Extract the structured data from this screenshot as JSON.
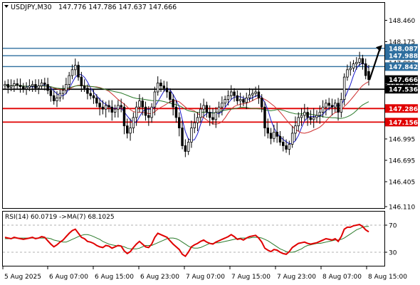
{
  "header": {
    "symbol": "USDJPY,M30",
    "ohlc": "147.776 147.786 147.637 147.666"
  },
  "rsi_header": "RSI(14) 60.0719 ->MA(7) 68.1025",
  "colors": {
    "bull": "#ffffff",
    "bear": "#000000",
    "candle_outline": "#000000",
    "ma_fast": "#1a1acc",
    "ma_mid": "#d03030",
    "ma_slow": "#2a7a2a",
    "resistance_line": "#2f6f9f",
    "pivot_line": "#000000",
    "support_line": "#e00000",
    "price_tag_blue": "#2f6f9f",
    "price_tag_black": "#000000",
    "price_tag_red": "#e00000",
    "rsi_line": "#e00000",
    "rsi_ma": "#2a7a2a",
    "grid": "#999999"
  },
  "chart_data": [
    {
      "type": "candlestick",
      "title": "USDJPY,M30",
      "y_ticks": [
        148.46,
        148.175,
        147.89,
        147.6,
        147.305,
        146.995,
        146.695,
        146.405,
        146.11
      ],
      "ylim": [
        146.11,
        148.6
      ],
      "x_ticks": [
        "5 Aug 2025",
        "6 Aug 07:00",
        "6 Aug 15:00",
        "6 Aug 23:00",
        "7 Aug 07:00",
        "7 Aug 15:00",
        "7 Aug 23:00",
        "8 Aug 07:00",
        "8 Aug 15:00"
      ],
      "levels": [
        {
          "value": 148.087,
          "label": "148.087",
          "kind": "resistance"
        },
        {
          "value": 147.988,
          "label": "147.988",
          "kind": "resistance"
        },
        {
          "value": 147.842,
          "label": "147.842",
          "kind": "resistance"
        },
        {
          "value": 147.666,
          "label": "147.666",
          "kind": "current"
        },
        {
          "value": 147.536,
          "label": "147.536",
          "kind": "pivot"
        },
        {
          "value": 147.286,
          "label": "147.286",
          "kind": "support"
        },
        {
          "value": 147.156,
          "label": "147.156",
          "kind": "support"
        }
      ],
      "forecast_arrow": {
        "from": 147.66,
        "to": 148.13
      },
      "close": [
        147.6,
        147.56,
        147.58,
        147.61,
        147.59,
        147.57,
        147.54,
        147.56,
        147.58,
        147.6,
        147.55,
        147.58,
        147.62,
        147.6,
        147.52,
        147.45,
        147.38,
        147.42,
        147.48,
        147.52,
        147.6,
        147.72,
        147.8,
        147.86,
        147.7,
        147.58,
        147.55,
        147.48,
        147.45,
        147.42,
        147.35,
        147.3,
        147.28,
        147.32,
        147.3,
        147.25,
        147.28,
        147.32,
        147.3,
        147.12,
        147.05,
        147.1,
        147.2,
        147.3,
        147.38,
        147.3,
        147.22,
        147.2,
        147.3,
        147.5,
        147.62,
        147.58,
        147.55,
        147.5,
        147.4,
        147.3,
        147.2,
        147.1,
        146.9,
        146.82,
        146.95,
        147.1,
        147.15,
        147.2,
        147.28,
        147.32,
        147.25,
        147.2,
        147.18,
        147.25,
        147.3,
        147.35,
        147.4,
        147.45,
        147.5,
        147.45,
        147.38,
        147.4,
        147.36,
        147.42,
        147.46,
        147.48,
        147.5,
        147.42,
        147.3,
        147.1,
        147.05,
        147.0,
        147.06,
        147.02,
        146.95,
        146.9,
        146.85,
        146.92,
        147.05,
        147.12,
        147.2,
        147.22,
        147.25,
        147.2,
        147.18,
        147.2,
        147.22,
        147.25,
        147.3,
        147.35,
        147.32,
        147.3,
        147.35,
        147.25,
        147.4,
        147.7,
        147.8,
        147.82,
        147.88,
        147.9,
        147.95,
        147.88,
        147.72,
        147.666
      ],
      "open": [
        147.58,
        147.6,
        147.56,
        147.58,
        147.61,
        147.59,
        147.57,
        147.54,
        147.56,
        147.58,
        147.6,
        147.55,
        147.58,
        147.62,
        147.6,
        147.52,
        147.45,
        147.38,
        147.42,
        147.48,
        147.52,
        147.6,
        147.72,
        147.8,
        147.86,
        147.7,
        147.58,
        147.55,
        147.48,
        147.45,
        147.42,
        147.35,
        147.3,
        147.28,
        147.32,
        147.3,
        147.25,
        147.28,
        147.32,
        147.3,
        147.12,
        147.05,
        147.1,
        147.2,
        147.3,
        147.38,
        147.3,
        147.22,
        147.2,
        147.3,
        147.5,
        147.62,
        147.58,
        147.55,
        147.5,
        147.4,
        147.3,
        147.2,
        147.1,
        146.9,
        146.82,
        146.95,
        147.1,
        147.15,
        147.2,
        147.28,
        147.32,
        147.25,
        147.2,
        147.18,
        147.25,
        147.3,
        147.35,
        147.4,
        147.45,
        147.5,
        147.45,
        147.38,
        147.4,
        147.36,
        147.42,
        147.46,
        147.48,
        147.5,
        147.42,
        147.3,
        147.1,
        147.05,
        147.0,
        147.06,
        147.02,
        146.95,
        146.9,
        146.85,
        146.92,
        147.05,
        147.12,
        147.2,
        147.22,
        147.25,
        147.2,
        147.18,
        147.2,
        147.22,
        147.25,
        147.3,
        147.35,
        147.32,
        147.3,
        147.35,
        147.25,
        147.4,
        147.7,
        147.8,
        147.82,
        147.88,
        147.9,
        147.95,
        147.88,
        147.776
      ]
    },
    {
      "type": "line",
      "title": "RSI(14) 60.0719 ->MA(7) 68.1025",
      "y_ticks": [
        70,
        30
      ],
      "ylim": [
        10,
        90
      ],
      "series": [
        {
          "name": "RSI(14)",
          "values": [
            52,
            51,
            50,
            52,
            51,
            50,
            49,
            50,
            51,
            52,
            50,
            51,
            53,
            52,
            47,
            42,
            38,
            41,
            45,
            48,
            53,
            58,
            62,
            64,
            58,
            52,
            50,
            46,
            45,
            43,
            40,
            38,
            37,
            40,
            39,
            36,
            38,
            40,
            39,
            32,
            28,
            31,
            37,
            42,
            46,
            42,
            38,
            37,
            42,
            52,
            58,
            56,
            54,
            52,
            47,
            42,
            38,
            34,
            27,
            24,
            30,
            38,
            41,
            43,
            46,
            48,
            45,
            43,
            42,
            45,
            47,
            49,
            51,
            53,
            56,
            53,
            49,
            50,
            48,
            51,
            53,
            54,
            55,
            51,
            45,
            36,
            33,
            31,
            34,
            33,
            30,
            28,
            27,
            31,
            37,
            40,
            43,
            44,
            45,
            43,
            42,
            43,
            44,
            46,
            48,
            50,
            49,
            48,
            50,
            46,
            53,
            64,
            67,
            67,
            69,
            70,
            71,
            68,
            63,
            60.07
          ]
        },
        {
          "name": "MA(7)",
          "values": [
            50,
            50,
            50,
            51,
            51,
            51,
            51,
            51,
            51,
            51,
            51,
            51,
            51,
            51,
            51,
            50,
            48,
            47,
            46,
            45,
            45,
            47,
            49,
            51,
            53,
            55,
            56,
            56,
            55,
            53,
            51,
            49,
            46,
            44,
            42,
            41,
            40,
            39,
            39,
            38,
            36,
            35,
            35,
            35,
            36,
            38,
            40,
            40,
            40,
            42,
            44,
            46,
            48,
            50,
            51,
            51,
            50,
            48,
            45,
            42,
            39,
            37,
            36,
            36,
            37,
            39,
            41,
            43,
            43,
            44,
            44,
            45,
            46,
            47,
            48,
            49,
            50,
            51,
            51,
            51,
            51,
            52,
            52,
            52,
            51,
            49,
            47,
            44,
            41,
            38,
            35,
            33,
            31,
            30,
            30,
            31,
            33,
            35,
            38,
            40,
            41,
            42,
            43,
            43,
            44,
            45,
            46,
            47,
            48,
            48,
            49,
            51,
            54,
            57,
            60,
            63,
            65,
            67,
            68,
            68.1
          ]
        }
      ]
    }
  ]
}
